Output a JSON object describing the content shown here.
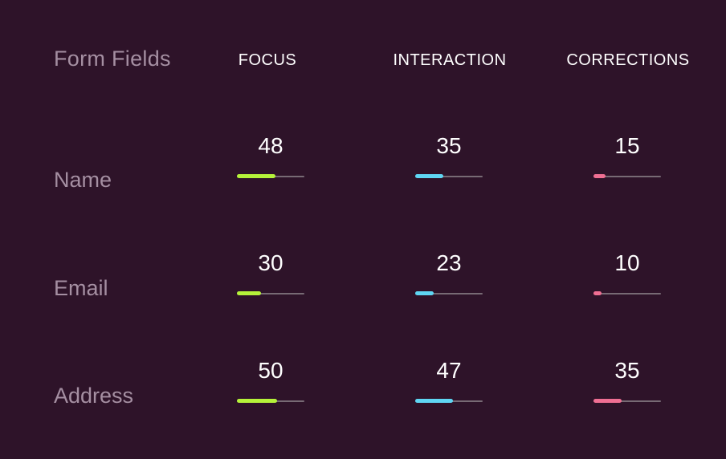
{
  "chart_data": {
    "type": "table",
    "title": "Form Fields",
    "columns": [
      {
        "key": "focus",
        "label": "FOCUS",
        "color": "#b5f23a"
      },
      {
        "key": "interaction",
        "label": "INTERACTION",
        "color": "#5fd6f3"
      },
      {
        "key": "corrections",
        "label": "CORRECTIONS",
        "color": "#ef6f93"
      }
    ],
    "rows": [
      {
        "label": "Name",
        "values": {
          "focus": 48,
          "interaction": 35,
          "corrections": 15
        }
      },
      {
        "label": "Email",
        "values": {
          "focus": 30,
          "interaction": 23,
          "corrections": 10
        }
      },
      {
        "label": "Address",
        "values": {
          "focus": 50,
          "interaction": 47,
          "corrections": 35
        }
      }
    ],
    "bar_scale_max": 84
  }
}
